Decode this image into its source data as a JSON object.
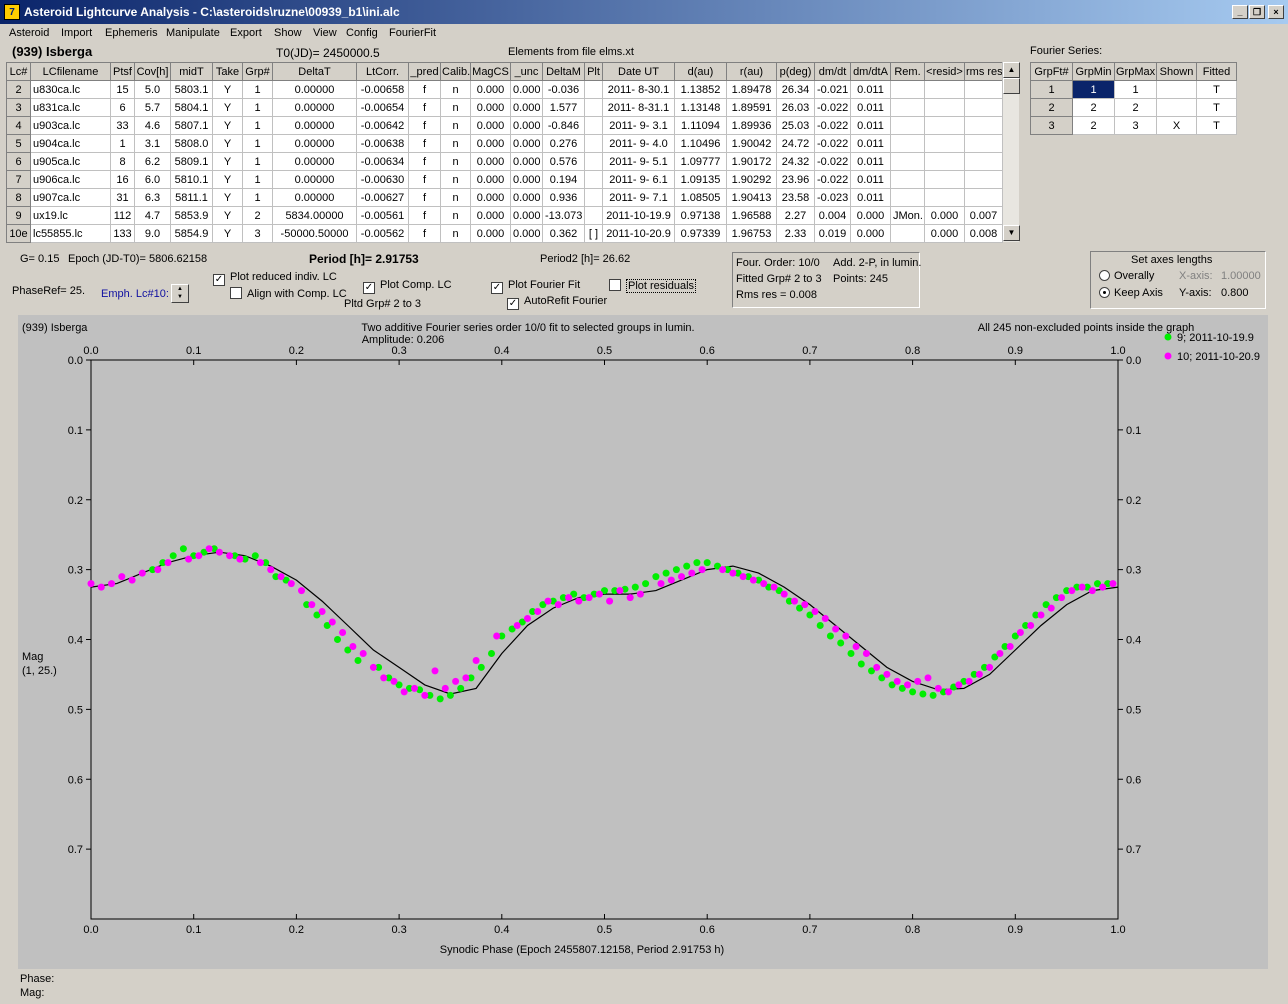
{
  "window": {
    "title": "Asteroid Lightcurve Analysis - C:\\asteroids\\ruzne\\00939_b1\\ini.alc",
    "icon_glyph": "7",
    "minimize": "_",
    "restore": "❐",
    "close": "×"
  },
  "menu": [
    "Asteroid",
    "Import",
    "Ephemeris",
    "Manipulate",
    "Export",
    "Show",
    "View",
    "Config",
    "FourierFit"
  ],
  "header": {
    "asteroid": "(939) Isberga",
    "t0": "T0(JD)= 2450000.5",
    "elements": "Elements from file elms.xt"
  },
  "lc_table": {
    "columns": [
      "Lc#",
      "LCfilename",
      "Ptsf",
      "Cov[h]",
      "midT",
      "Take",
      "Grp#",
      "DeltaT",
      "LtCorr.",
      "_pred",
      "Calib.",
      "MagCS",
      "_unc",
      "DeltaM",
      "Plt",
      "Date UT",
      "d(au)",
      "r(au)",
      "p(deg)",
      "dm/dt",
      "dm/dtA",
      "Rem.",
      "<resid>",
      "rms res"
    ],
    "rows": [
      [
        "2",
        "u830ca.lc",
        "15",
        "5.0",
        "5803.1",
        "Y",
        "1",
        "0.00000",
        "-0.00658",
        "f",
        "n",
        "0.000",
        "0.000",
        "-0.036",
        "",
        "2011- 8-30.1",
        "1.13852",
        "1.89478",
        "26.34",
        "-0.021",
        "0.011",
        "",
        "",
        ""
      ],
      [
        "3",
        "u831ca.lc",
        "6",
        "5.7",
        "5804.1",
        "Y",
        "1",
        "0.00000",
        "-0.00654",
        "f",
        "n",
        "0.000",
        "0.000",
        "1.577",
        "",
        "2011- 8-31.1",
        "1.13148",
        "1.89591",
        "26.03",
        "-0.022",
        "0.011",
        "",
        "",
        ""
      ],
      [
        "4",
        "u903ca.lc",
        "33",
        "4.6",
        "5807.1",
        "Y",
        "1",
        "0.00000",
        "-0.00642",
        "f",
        "n",
        "0.000",
        "0.000",
        "-0.846",
        "",
        "2011- 9- 3.1",
        "1.11094",
        "1.89936",
        "25.03",
        "-0.022",
        "0.011",
        "",
        "",
        ""
      ],
      [
        "5",
        "u904ca.lc",
        "1",
        "3.1",
        "5808.0",
        "Y",
        "1",
        "0.00000",
        "-0.00638",
        "f",
        "n",
        "0.000",
        "0.000",
        "0.276",
        "",
        "2011- 9- 4.0",
        "1.10496",
        "1.90042",
        "24.72",
        "-0.022",
        "0.011",
        "",
        "",
        ""
      ],
      [
        "6",
        "u905ca.lc",
        "8",
        "6.2",
        "5809.1",
        "Y",
        "1",
        "0.00000",
        "-0.00634",
        "f",
        "n",
        "0.000",
        "0.000",
        "0.576",
        "",
        "2011- 9- 5.1",
        "1.09777",
        "1.90172",
        "24.32",
        "-0.022",
        "0.011",
        "",
        "",
        ""
      ],
      [
        "7",
        "u906ca.lc",
        "16",
        "6.0",
        "5810.1",
        "Y",
        "1",
        "0.00000",
        "-0.00630",
        "f",
        "n",
        "0.000",
        "0.000",
        "0.194",
        "",
        "2011- 9- 6.1",
        "1.09135",
        "1.90292",
        "23.96",
        "-0.022",
        "0.011",
        "",
        "",
        ""
      ],
      [
        "8",
        "u907ca.lc",
        "31",
        "6.3",
        "5811.1",
        "Y",
        "1",
        "0.00000",
        "-0.00627",
        "f",
        "n",
        "0.000",
        "0.000",
        "0.936",
        "",
        "2011- 9- 7.1",
        "1.08505",
        "1.90413",
        "23.58",
        "-0.023",
        "0.011",
        "",
        "",
        ""
      ],
      [
        "9",
        "ux19.lc",
        "112",
        "4.7",
        "5853.9",
        "Y",
        "2",
        "5834.00000",
        "-0.00561",
        "f",
        "n",
        "0.000",
        "0.000",
        "-13.073",
        "",
        "2011-10-19.9",
        "0.97138",
        "1.96588",
        "2.27",
        "0.004",
        "0.000",
        "JMon..",
        "0.000",
        "0.007"
      ],
      [
        "10e",
        "lc55855.lc",
        "133",
        "9.0",
        "5854.9",
        "Y",
        "3",
        "-50000.50000",
        "-0.00562",
        "f",
        "n",
        "0.000",
        "0.000",
        "0.362",
        "[ ]",
        "2011-10-20.9",
        "0.97339",
        "1.96753",
        "2.33",
        "0.019",
        "0.000",
        "",
        "0.000",
        "0.008"
      ]
    ]
  },
  "fourier": {
    "title": "Fourier Series:",
    "columns": [
      "GrpFt#",
      "GrpMin",
      "GrpMax",
      "Shown",
      "Fitted"
    ],
    "rows": [
      [
        "1",
        "1",
        "1",
        "",
        "T"
      ],
      [
        "2",
        "2",
        "2",
        "",
        "T"
      ],
      [
        "3",
        "2",
        "3",
        "X",
        "T"
      ]
    ]
  },
  "controls": {
    "g": "G= 0.15",
    "epoch": "Epoch (JD-T0)= 5806.62158",
    "period": "Period [h]= 2.91753",
    "period2": "Period2 [h]= 26.62",
    "phaseref": "PhaseRef= 25.",
    "emph": "Emph. Lc#10:",
    "plot_reduced": "Plot reduced indiv. LC",
    "align": "Align with Comp. LC",
    "plot_comp": "Plot Comp. LC",
    "pltd_grp": "Pltd Grp#  2   to   3",
    "plot_fourier": "Plot Fourier Fit",
    "autorefit": "AutoRefit Fourier",
    "plot_residuals": "Plot residuals",
    "info1": "Four. Order: 10/0",
    "info2": "Add. 2-P, in lumin.",
    "info3": "Fitted Grp# 2 to 3",
    "info4": "Points: 245",
    "info5": "Rms res     = 0.008",
    "axes_title": "Set axes lengths",
    "overally": "Overally",
    "keep_axis": "Keep Axis",
    "xaxis_label": "X-axis:",
    "xaxis_val": "1.00000",
    "yaxis_label": "Y-axis:",
    "yaxis_val": "0.800"
  },
  "chart_data": {
    "type": "scatter",
    "title": "(939) Isberga",
    "subtitle": "Two additive Fourier series order 10/0 fit to selected groups in lumin.",
    "amplitude": "Amplitude: 0.206",
    "note": "All 245 non-excluded points inside the graph",
    "xlabel": "Synodic Phase (Epoch 2455807.12158, Period 2.91753 h)",
    "ylabel": "Mag",
    "ylabel2": "(1, 25.)",
    "xlim": [
      0.0,
      1.0
    ],
    "ylim": [
      0.0,
      0.8
    ],
    "y_inverted": true,
    "xticks": [
      "0.0",
      "0.1",
      "0.2",
      "0.3",
      "0.4",
      "0.5",
      "0.6",
      "0.7",
      "0.8",
      "0.9",
      "1.0"
    ],
    "yticks": [
      "0.0",
      "0.1",
      "0.2",
      "0.3",
      "0.4",
      "0.5",
      "0.6",
      "0.7"
    ],
    "legend_position": "right",
    "series": [
      {
        "name": "9; 2011-10-19.9",
        "color": "#00ee00",
        "x": [
          0.14,
          0.15,
          0.16,
          0.17,
          0.18,
          0.19,
          0.21,
          0.22,
          0.23,
          0.24,
          0.25,
          0.26,
          0.28,
          0.29,
          0.3,
          0.31,
          0.32,
          0.33,
          0.34,
          0.35,
          0.36,
          0.37,
          0.38,
          0.39,
          0.4,
          0.41,
          0.42,
          0.43,
          0.44,
          0.45,
          0.46,
          0.47,
          0.48,
          0.49,
          0.5,
          0.51,
          0.52,
          0.53,
          0.54,
          0.55,
          0.56,
          0.57,
          0.58,
          0.59,
          0.6,
          0.61,
          0.62,
          0.63,
          0.64,
          0.65,
          0.66,
          0.67,
          0.68,
          0.69,
          0.7,
          0.71,
          0.72,
          0.73,
          0.74,
          0.75,
          0.76,
          0.77,
          0.78,
          0.79,
          0.8,
          0.81,
          0.82,
          0.83,
          0.84,
          0.85,
          0.86,
          0.87,
          0.88,
          0.89,
          0.9,
          0.91,
          0.92,
          0.93,
          0.94,
          0.95,
          0.96,
          0.97,
          0.98,
          0.99,
          0.06,
          0.07,
          0.08,
          0.09,
          0.1,
          0.11,
          0.12
        ],
        "y": [
          0.28,
          0.285,
          0.28,
          0.29,
          0.31,
          0.315,
          0.35,
          0.365,
          0.38,
          0.4,
          0.415,
          0.43,
          0.44,
          0.455,
          0.465,
          0.47,
          0.472,
          0.48,
          0.485,
          0.48,
          0.47,
          0.455,
          0.44,
          0.42,
          0.395,
          0.385,
          0.375,
          0.36,
          0.35,
          0.345,
          0.34,
          0.335,
          0.34,
          0.335,
          0.33,
          0.33,
          0.328,
          0.325,
          0.32,
          0.31,
          0.305,
          0.3,
          0.295,
          0.29,
          0.29,
          0.295,
          0.3,
          0.305,
          0.31,
          0.315,
          0.325,
          0.33,
          0.345,
          0.355,
          0.365,
          0.38,
          0.395,
          0.405,
          0.42,
          0.435,
          0.445,
          0.455,
          0.465,
          0.47,
          0.475,
          0.478,
          0.48,
          0.475,
          0.468,
          0.46,
          0.45,
          0.44,
          0.425,
          0.41,
          0.395,
          0.38,
          0.365,
          0.35,
          0.34,
          0.33,
          0.325,
          0.325,
          0.32,
          0.32,
          0.3,
          0.29,
          0.28,
          0.27,
          0.28,
          0.275,
          0.27
        ]
      },
      {
        "name": "10; 2011-10-20.9",
        "color": "#ff00ff",
        "x": [
          0.0,
          0.01,
          0.02,
          0.03,
          0.04,
          0.05,
          0.065,
          0.075,
          0.095,
          0.105,
          0.115,
          0.125,
          0.135,
          0.145,
          0.165,
          0.175,
          0.185,
          0.195,
          0.205,
          0.215,
          0.225,
          0.235,
          0.245,
          0.255,
          0.265,
          0.275,
          0.285,
          0.295,
          0.305,
          0.315,
          0.325,
          0.335,
          0.345,
          0.355,
          0.365,
          0.375,
          0.395,
          0.415,
          0.425,
          0.435,
          0.445,
          0.455,
          0.465,
          0.475,
          0.485,
          0.495,
          0.505,
          0.515,
          0.525,
          0.535,
          0.555,
          0.565,
          0.575,
          0.585,
          0.595,
          0.615,
          0.625,
          0.635,
          0.645,
          0.655,
          0.665,
          0.675,
          0.685,
          0.695,
          0.705,
          0.715,
          0.725,
          0.735,
          0.745,
          0.755,
          0.765,
          0.775,
          0.785,
          0.795,
          0.805,
          0.815,
          0.825,
          0.835,
          0.845,
          0.855,
          0.865,
          0.875,
          0.885,
          0.895,
          0.905,
          0.915,
          0.925,
          0.935,
          0.945,
          0.955,
          0.965,
          0.975,
          0.985,
          0.995
        ],
        "y": [
          0.32,
          0.325,
          0.32,
          0.31,
          0.315,
          0.305,
          0.3,
          0.29,
          0.285,
          0.28,
          0.27,
          0.275,
          0.28,
          0.285,
          0.29,
          0.3,
          0.31,
          0.32,
          0.33,
          0.35,
          0.36,
          0.375,
          0.39,
          0.41,
          0.42,
          0.44,
          0.455,
          0.46,
          0.475,
          0.47,
          0.48,
          0.445,
          0.47,
          0.46,
          0.455,
          0.43,
          0.395,
          0.38,
          0.37,
          0.36,
          0.345,
          0.35,
          0.34,
          0.345,
          0.34,
          0.335,
          0.345,
          0.33,
          0.34,
          0.335,
          0.32,
          0.315,
          0.31,
          0.305,
          0.3,
          0.3,
          0.305,
          0.31,
          0.315,
          0.32,
          0.325,
          0.335,
          0.345,
          0.35,
          0.36,
          0.37,
          0.385,
          0.395,
          0.41,
          0.42,
          0.44,
          0.45,
          0.46,
          0.465,
          0.46,
          0.455,
          0.47,
          0.475,
          0.465,
          0.46,
          0.45,
          0.44,
          0.42,
          0.41,
          0.39,
          0.38,
          0.365,
          0.355,
          0.34,
          0.33,
          0.325,
          0.33,
          0.325,
          0.32
        ]
      },
      {
        "name": "",
        "color": "#000000",
        "x": [
          0.0,
          0.025,
          0.05,
          0.075,
          0.1,
          0.125,
          0.15,
          0.175,
          0.2,
          0.225,
          0.25,
          0.275,
          0.3,
          0.325,
          0.35,
          0.375,
          0.4,
          0.425,
          0.45,
          0.475,
          0.5,
          0.525,
          0.55,
          0.575,
          0.6,
          0.625,
          0.65,
          0.675,
          0.7,
          0.725,
          0.75,
          0.775,
          0.8,
          0.825,
          0.85,
          0.875,
          0.9,
          0.925,
          0.95,
          0.975,
          1.0
        ],
        "y": [
          0.325,
          0.32,
          0.305,
          0.29,
          0.28,
          0.275,
          0.28,
          0.295,
          0.315,
          0.345,
          0.38,
          0.415,
          0.44,
          0.465,
          0.478,
          0.47,
          0.42,
          0.38,
          0.355,
          0.34,
          0.335,
          0.335,
          0.33,
          0.315,
          0.3,
          0.295,
          0.305,
          0.325,
          0.35,
          0.38,
          0.41,
          0.44,
          0.46,
          0.472,
          0.47,
          0.45,
          0.415,
          0.38,
          0.35,
          0.33,
          0.325
        ]
      }
    ]
  },
  "footer": {
    "phase": "Phase:",
    "mag": "Mag:"
  }
}
